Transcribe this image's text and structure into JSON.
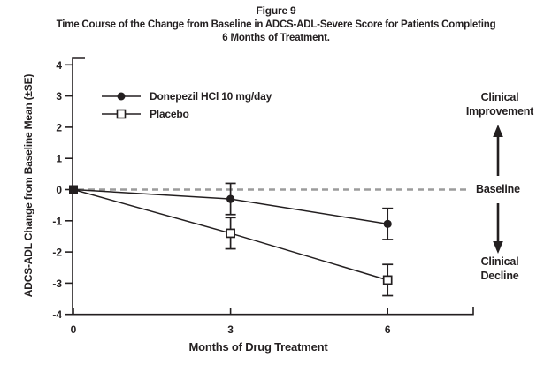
{
  "figure": {
    "label": "Figure 9",
    "title_line1": "Time Course of the Change from Baseline in ADCS-ADL-Severe Score for Patients Completing",
    "title_line2": "6 Months of Treatment."
  },
  "chart_data": {
    "type": "line",
    "title": "Figure 9. Time Course of the Change from Baseline in ADCS-ADL-Severe Score for Patients Completing 6 Months of Treatment.",
    "xlabel": "Months of Drug Treatment",
    "ylabel": "ADCS-ADL Change from Baseline Mean (±SE)",
    "x": [
      0,
      3,
      6
    ],
    "x_ticks": [
      0,
      3,
      6
    ],
    "y_ticks": [
      4,
      3,
      2,
      1,
      0,
      -1,
      -2,
      -3,
      -4
    ],
    "ylim": [
      -4,
      4
    ],
    "grid": false,
    "legend_position": "upper-left-inside",
    "series": [
      {
        "name": "Donepezil HCl 10 mg/day",
        "marker": "filled-circle",
        "values": [
          0,
          -0.3,
          -1.1
        ],
        "se": [
          0,
          0.5,
          0.5
        ]
      },
      {
        "name": "Placebo",
        "marker": "open-square",
        "values": [
          0,
          -1.4,
          -2.9
        ],
        "se": [
          0,
          0.5,
          0.5
        ]
      }
    ],
    "baseline": {
      "y": 0,
      "label": "Baseline",
      "style": "dashed"
    },
    "annotations": {
      "clinical_improvement": [
        "Clinical",
        "Improvement"
      ],
      "clinical_decline": [
        "Clinical",
        "Decline"
      ]
    }
  },
  "colors": {
    "ink": "#231f20",
    "dashed_baseline": "#9c9c9c",
    "background": "#ffffff"
  }
}
